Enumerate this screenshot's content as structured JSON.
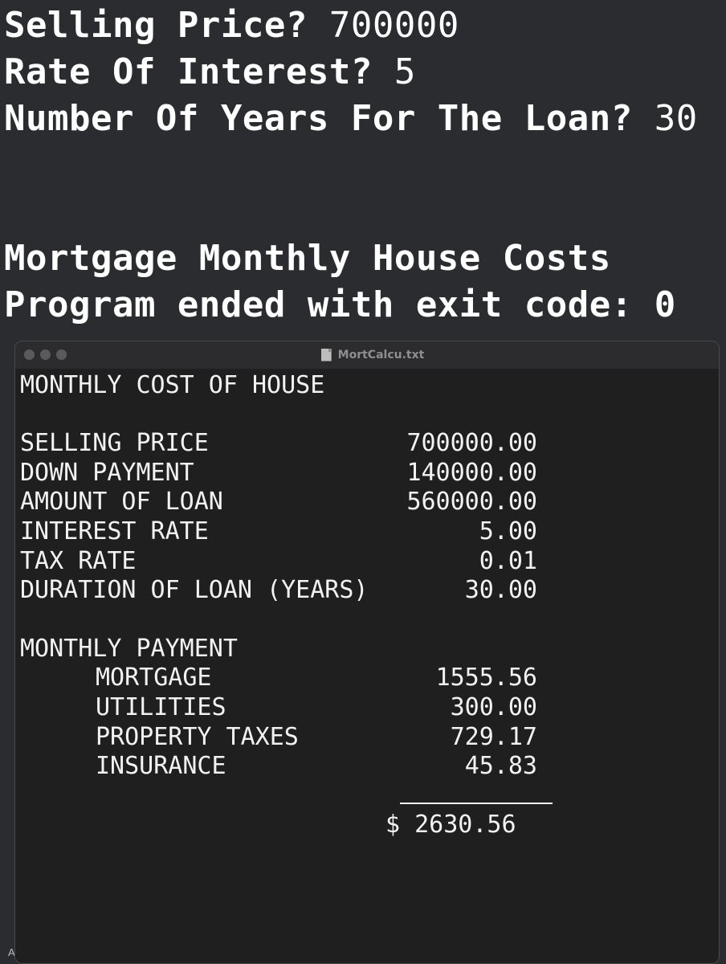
{
  "console": {
    "prompts": [
      {
        "question": "Selling Price?",
        "answer": "700000"
      },
      {
        "question": "Rate Of Interest?",
        "answer": "5"
      },
      {
        "question": "Number Of Years For The Loan?",
        "answer": "30"
      }
    ],
    "output_heading": "Mortgage Monthly House Costs",
    "exit_message": "Program ended with exit code: 0",
    "edge_glyph": "A"
  },
  "window": {
    "title": "MortCalcu.txt",
    "document": {
      "heading": "MONTHLY COST OF HOUSE",
      "summary": [
        {
          "label": "SELLING PRICE",
          "value": "700000.00"
        },
        {
          "label": "DOWN PAYMENT",
          "value": "140000.00"
        },
        {
          "label": "AMOUNT OF LOAN",
          "value": "560000.00"
        },
        {
          "label": "INTEREST RATE",
          "value": "5.00"
        },
        {
          "label": "TAX RATE",
          "value": "0.01"
        },
        {
          "label": "DURATION OF LOAN (YEARS)",
          "value": "30.00"
        }
      ],
      "payment_heading": "MONTHLY PAYMENT",
      "payments": [
        {
          "label": "MORTGAGE",
          "value": "1555.56"
        },
        {
          "label": "UTILITIES",
          "value": "300.00"
        },
        {
          "label": "PROPERTY TAXES",
          "value": "729.17"
        },
        {
          "label": "INSURANCE",
          "value": "45.83"
        }
      ],
      "total": "$ 2630.56"
    }
  }
}
